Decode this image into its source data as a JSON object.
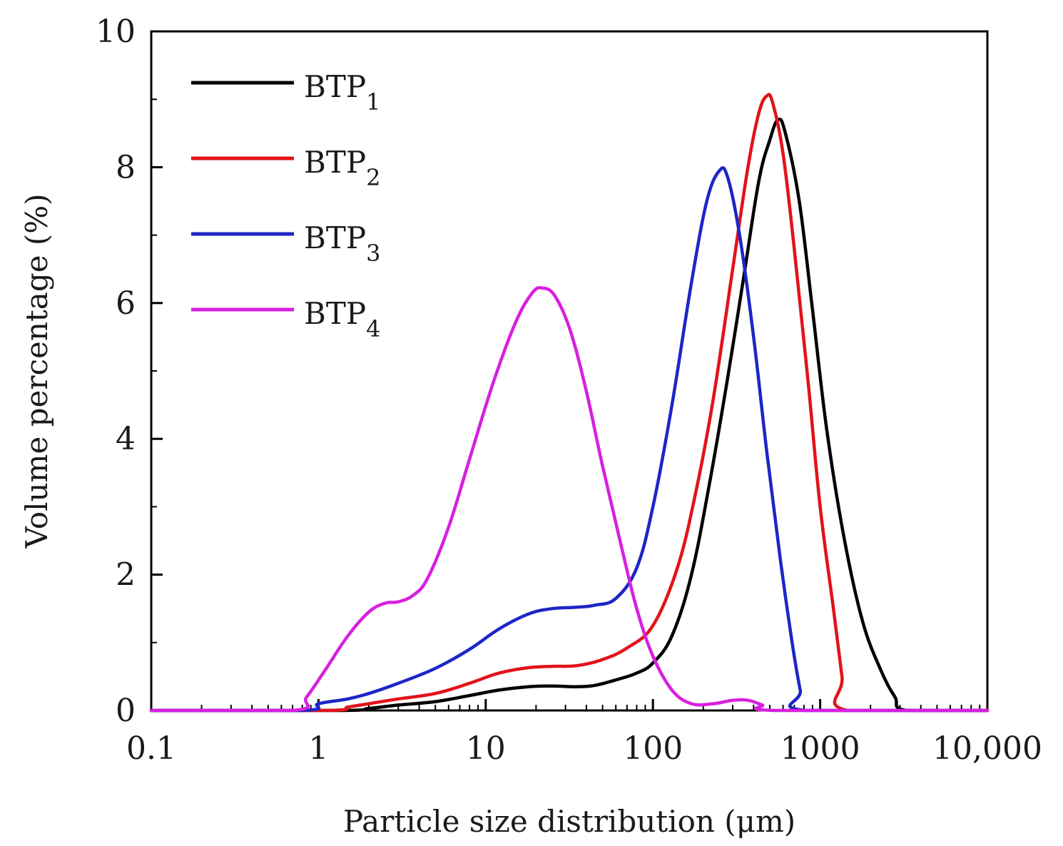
{
  "chart_data": {
    "type": "line",
    "title": "",
    "xlabel": "Particle size distribution (μm)",
    "ylabel": "Volume percentage (%)",
    "xscale": "log",
    "xlim": [
      0.1,
      10000
    ],
    "ylim": [
      0,
      10
    ],
    "x_ticks": [
      0.1,
      1,
      10,
      100,
      1000,
      10000
    ],
    "x_tick_labels": [
      "0.1",
      "1",
      "10",
      "100",
      "1000",
      "10,000"
    ],
    "y_ticks": [
      0,
      2,
      4,
      6,
      8,
      10
    ],
    "y_tick_labels": [
      "0",
      "2",
      "4",
      "6",
      "8",
      "10"
    ],
    "grid": false,
    "legend_position": "top-left",
    "series": [
      {
        "name": "BTP",
        "subscript": "1",
        "color": "#000000",
        "points": [
          [
            0.1,
            0
          ],
          [
            1.3,
            0
          ],
          [
            2,
            0.03
          ],
          [
            3,
            0.08
          ],
          [
            5,
            0.13
          ],
          [
            8,
            0.22
          ],
          [
            12,
            0.3
          ],
          [
            18,
            0.35
          ],
          [
            25,
            0.36
          ],
          [
            35,
            0.35
          ],
          [
            45,
            0.37
          ],
          [
            60,
            0.45
          ],
          [
            80,
            0.55
          ],
          [
            100,
            0.7
          ],
          [
            130,
            1.1
          ],
          [
            170,
            2.0
          ],
          [
            220,
            3.4
          ],
          [
            280,
            4.9
          ],
          [
            350,
            6.4
          ],
          [
            430,
            7.8
          ],
          [
            500,
            8.4
          ],
          [
            560,
            8.7
          ],
          [
            620,
            8.5
          ],
          [
            750,
            7.5
          ],
          [
            900,
            5.9
          ],
          [
            1100,
            4.1
          ],
          [
            1400,
            2.5
          ],
          [
            1800,
            1.3
          ],
          [
            2300,
            0.6
          ],
          [
            2800,
            0.2
          ],
          [
            3300,
            0
          ],
          [
            10000,
            0
          ]
        ]
      },
      {
        "name": "BTP",
        "subscript": "2",
        "color": "#e3121a",
        "points": [
          [
            0.1,
            0
          ],
          [
            1.1,
            0
          ],
          [
            1.5,
            0.05
          ],
          [
            2,
            0.1
          ],
          [
            3,
            0.17
          ],
          [
            5,
            0.25
          ],
          [
            8,
            0.4
          ],
          [
            12,
            0.55
          ],
          [
            18,
            0.63
          ],
          [
            25,
            0.65
          ],
          [
            35,
            0.66
          ],
          [
            50,
            0.75
          ],
          [
            70,
            0.92
          ],
          [
            100,
            1.25
          ],
          [
            140,
            2.1
          ],
          [
            180,
            3.2
          ],
          [
            230,
            4.6
          ],
          [
            300,
            6.5
          ],
          [
            370,
            8.0
          ],
          [
            430,
            8.8
          ],
          [
            480,
            9.05
          ],
          [
            520,
            8.95
          ],
          [
            600,
            8.2
          ],
          [
            700,
            6.8
          ],
          [
            850,
            4.8
          ],
          [
            1000,
            3.0
          ],
          [
            1200,
            1.5
          ],
          [
            1350,
            0.5
          ],
          [
            1450,
            0
          ],
          [
            10000,
            0
          ]
        ]
      },
      {
        "name": "BTP",
        "subscript": "3",
        "color": "#1c26c6",
        "points": [
          [
            0.1,
            0
          ],
          [
            0.8,
            0
          ],
          [
            1,
            0.1
          ],
          [
            1.5,
            0.17
          ],
          [
            2,
            0.25
          ],
          [
            3,
            0.4
          ],
          [
            5,
            0.62
          ],
          [
            8,
            0.9
          ],
          [
            12,
            1.2
          ],
          [
            18,
            1.42
          ],
          [
            25,
            1.5
          ],
          [
            35,
            1.52
          ],
          [
            45,
            1.55
          ],
          [
            60,
            1.65
          ],
          [
            80,
            2.1
          ],
          [
            100,
            3.0
          ],
          [
            130,
            4.5
          ],
          [
            170,
            6.3
          ],
          [
            210,
            7.5
          ],
          [
            250,
            7.95
          ],
          [
            280,
            7.85
          ],
          [
            330,
            7.0
          ],
          [
            400,
            5.5
          ],
          [
            480,
            3.8
          ],
          [
            580,
            2.2
          ],
          [
            680,
            1.0
          ],
          [
            760,
            0.3
          ],
          [
            820,
            0
          ],
          [
            10000,
            0
          ]
        ]
      },
      {
        "name": "BTP",
        "subscript": "4",
        "color": "#d81fe0",
        "points": [
          [
            0.1,
            0
          ],
          [
            0.7,
            0
          ],
          [
            0.85,
            0.2
          ],
          [
            1.1,
            0.6
          ],
          [
            1.5,
            1.1
          ],
          [
            2,
            1.45
          ],
          [
            2.5,
            1.58
          ],
          [
            3,
            1.6
          ],
          [
            3.7,
            1.7
          ],
          [
            4.5,
            1.95
          ],
          [
            6,
            2.7
          ],
          [
            8,
            3.7
          ],
          [
            11,
            4.8
          ],
          [
            15,
            5.7
          ],
          [
            19,
            6.15
          ],
          [
            22,
            6.22
          ],
          [
            26,
            6.1
          ],
          [
            32,
            5.6
          ],
          [
            40,
            4.7
          ],
          [
            50,
            3.6
          ],
          [
            65,
            2.4
          ],
          [
            80,
            1.5
          ],
          [
            100,
            0.8
          ],
          [
            130,
            0.3
          ],
          [
            170,
            0.1
          ],
          [
            230,
            0.1
          ],
          [
            300,
            0.15
          ],
          [
            370,
            0.15
          ],
          [
            450,
            0.08
          ],
          [
            550,
            0
          ],
          [
            10000,
            0
          ]
        ]
      }
    ]
  }
}
